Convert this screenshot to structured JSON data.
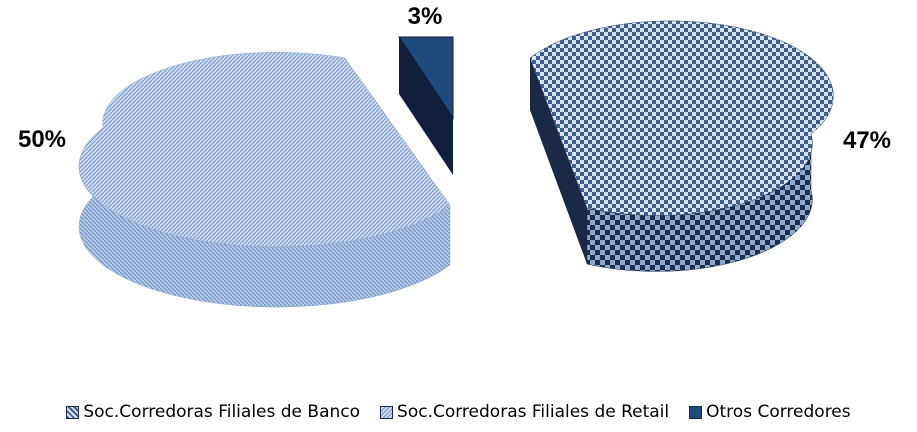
{
  "chart_data": {
    "type": "pie",
    "style": "3d-exploded",
    "categories": [
      "Soc.Corredoras Filiales de Banco",
      "Soc.Corredoras Filiales de Retail",
      "Otros Corredores"
    ],
    "values": [
      47,
      50,
      3
    ],
    "labels": [
      "47%",
      "50%",
      "3%"
    ],
    "legend_position": "bottom",
    "colors": [
      "#4a6c9a",
      "#a9c1e3",
      "#1f4a7c"
    ]
  }
}
